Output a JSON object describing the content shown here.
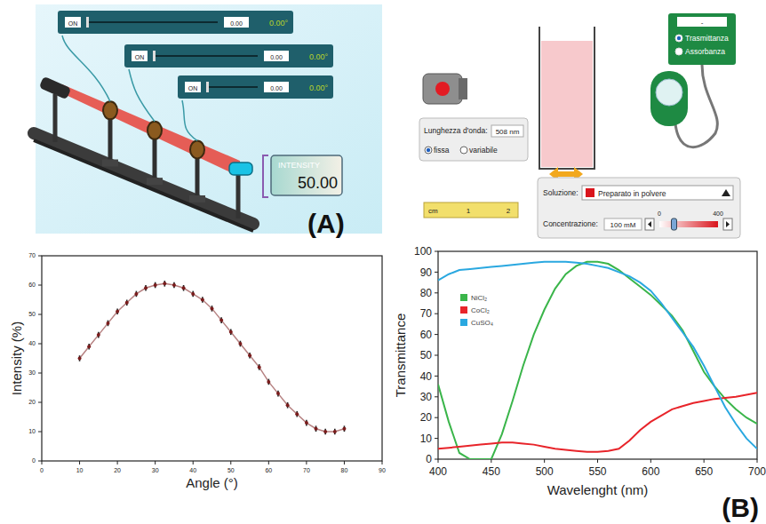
{
  "panel_a": {
    "letter": "(A)",
    "sliders": [
      {
        "button": "ON",
        "value": "0.00",
        "angle": "0.00°"
      },
      {
        "button": "ON",
        "value": "0.00",
        "angle": "0.00°"
      },
      {
        "button": "ON",
        "value": "0.00",
        "angle": "0.00°"
      }
    ],
    "intensity_label": "INTENSITY",
    "intensity_value": "50.00"
  },
  "panel_b": {
    "letter": "(B)",
    "wavelength_label": "Lunghezza d'onda:",
    "wavelength_value": "508 nm",
    "wavelength_modes": [
      "fissa",
      "variabile"
    ],
    "meter_title": "-",
    "meter_options": [
      "Trasmittanza",
      "Assorbanza"
    ],
    "ruler_labels": [
      "cm",
      "1",
      "2"
    ],
    "solution_label": "Soluzione:",
    "solution": "Preparato in polvere",
    "concentration_label": "Concentrazione:",
    "concentration_value": "100 mM",
    "concentration": 100,
    "concentration_range": [
      0,
      400
    ]
  },
  "chart_data": [
    {
      "type": "line",
      "x_label": "Angle (°)",
      "y_label": "Intensity (%)",
      "x": [
        10,
        12.5,
        15,
        17.5,
        20,
        22.5,
        25,
        27.5,
        30,
        32.5,
        35,
        37.5,
        40,
        42.5,
        45,
        47.5,
        50,
        52.5,
        55,
        57.5,
        60,
        62.5,
        65,
        67.5,
        70,
        72.5,
        75,
        77.5,
        80
      ],
      "values": [
        35,
        39,
        43,
        47,
        51,
        54,
        57,
        59,
        60,
        60.5,
        60,
        59,
        57,
        55,
        52,
        48,
        44,
        40,
        36,
        32,
        27,
        23,
        19,
        16,
        13,
        11,
        10,
        10,
        11
      ],
      "errors": [
        1,
        1,
        1,
        1,
        1,
        1,
        1,
        1,
        1,
        1,
        1,
        1,
        1,
        1,
        1,
        1,
        1,
        1,
        1,
        1,
        1,
        1,
        1,
        1,
        1,
        1,
        1,
        1,
        1
      ],
      "color": "#7a1c1c",
      "marker": "circle",
      "xlim": [
        0,
        90
      ],
      "xticks": [
        0,
        10,
        20,
        30,
        40,
        50,
        60,
        70,
        80,
        90
      ],
      "ylim": [
        0,
        70
      ],
      "yticks": [
        0,
        10,
        20,
        30,
        40,
        50,
        60,
        70
      ]
    },
    {
      "type": "line",
      "x_label": "Wavelenght (nm)",
      "y_label": "Transmittance",
      "x": [
        400,
        410,
        420,
        430,
        440,
        450,
        460,
        470,
        480,
        490,
        500,
        510,
        520,
        530,
        540,
        550,
        560,
        570,
        580,
        590,
        600,
        610,
        620,
        630,
        640,
        650,
        660,
        670,
        680,
        690,
        700
      ],
      "series": [
        {
          "name": "NiCl₂",
          "color": "#3ab54a",
          "values": [
            36,
            18,
            3,
            0,
            0,
            0,
            12,
            28,
            45,
            60,
            72,
            82,
            89,
            93,
            95,
            95,
            94,
            91,
            87,
            83,
            79,
            74,
            69,
            62,
            52,
            42,
            35,
            29,
            24,
            20,
            17
          ]
        },
        {
          "name": "CoCl₂",
          "color": "#e8242a",
          "values": [
            5,
            5.5,
            6,
            6.5,
            7,
            7.5,
            8,
            8,
            7.5,
            7,
            6,
            5,
            4.5,
            4,
            3.5,
            3.5,
            4,
            5,
            9,
            14,
            18,
            21,
            24,
            25.5,
            27,
            28,
            29,
            29.5,
            30,
            31,
            32
          ]
        },
        {
          "name": "CuSO₄",
          "color": "#2aa8e0",
          "values": [
            86,
            89,
            91,
            91.5,
            92,
            92.5,
            93,
            93.5,
            94,
            94.5,
            95,
            95,
            95,
            94.5,
            94,
            93,
            92,
            90,
            88,
            85,
            81,
            75,
            68,
            61,
            54,
            45,
            35,
            25,
            17,
            10,
            5
          ]
        }
      ],
      "legend": "upper left",
      "xlim": [
        400,
        700
      ],
      "xticks": [
        400,
        450,
        500,
        550,
        600,
        650,
        700
      ],
      "ylim": [
        0,
        100
      ],
      "yticks": [
        0,
        10,
        20,
        30,
        40,
        50,
        60,
        70,
        80,
        90,
        100
      ]
    }
  ]
}
